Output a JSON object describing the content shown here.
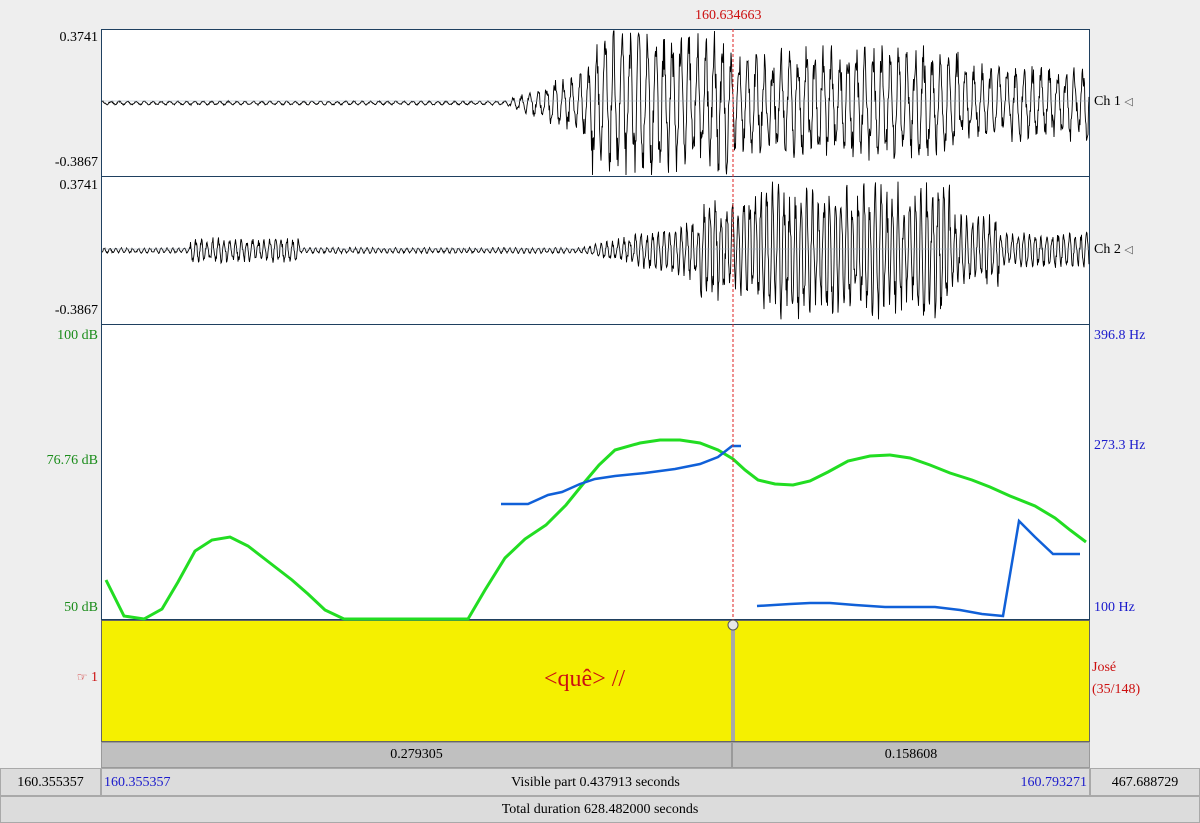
{
  "cursor": {
    "time": "160.634663"
  },
  "channels": [
    {
      "label": "Ch 1",
      "max": "0.3741",
      "min": "-0.3867",
      "speaker_icon": "speaker-icon"
    },
    {
      "label": "Ch 2",
      "max": "0.3741",
      "min": "-0.3867",
      "speaker_icon": "speaker-icon"
    }
  ],
  "intensity_axis": {
    "top": "100 dB",
    "mid": "76.76 dB",
    "bottom": "50 dB"
  },
  "pitch_axis": {
    "top": "396.8 Hz",
    "mid": "273.3 Hz",
    "bottom": "100 Hz"
  },
  "tier": {
    "number": "1",
    "icon": "pointing-hand-icon",
    "annotation": "<quê> //",
    "speaker": "José",
    "count": "(35/148)"
  },
  "segments": {
    "left": "0.279305",
    "right": "0.158608"
  },
  "visible": {
    "start": "160.355357",
    "end": "160.793271",
    "label": "Visible part 0.437913 seconds"
  },
  "window": {
    "start": "160.355357",
    "end": "467.688729"
  },
  "total": {
    "label": "Total duration 628.482000 seconds"
  },
  "colors": {
    "intensity": "#22dd22",
    "pitch": "#1060d8",
    "tier": "#f5f000",
    "cursor": "#dd2020"
  }
}
